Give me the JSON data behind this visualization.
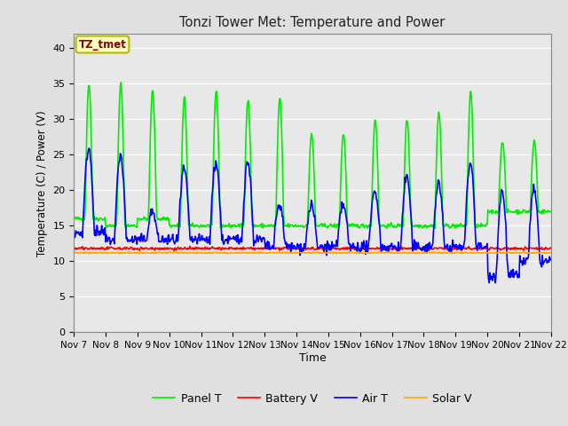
{
  "title": "Tonzi Tower Met: Temperature and Power",
  "xlabel": "Time",
  "ylabel": "Temperature (C) / Power (V)",
  "annotation_text": "TZ_tmet",
  "annotation_color": "#8B0000",
  "annotation_bg": "#FFFFC0",
  "annotation_border": "#B8B800",
  "ylim": [
    0,
    42
  ],
  "yticks": [
    0,
    5,
    10,
    15,
    20,
    25,
    30,
    35,
    40
  ],
  "xtick_labels": [
    "Nov 7",
    "Nov 8",
    "Nov 9",
    "Nov 10",
    "Nov 11",
    "Nov 12",
    "Nov 13",
    "Nov 14",
    "Nov 15",
    "Nov 16",
    "Nov 17",
    "Nov 18",
    "Nov 19",
    "Nov 20",
    "Nov 21",
    "Nov 22"
  ],
  "fig_bg_color": "#E0E0E0",
  "plot_bg_color": "#E8E8E8",
  "grid_color": "#FFFFFF",
  "panel_t_color": "#00EE00",
  "battery_v_color": "#FF0000",
  "air_t_color": "#0000FF",
  "solar_v_color": "#FFA500",
  "line_width": 1.2,
  "legend_labels": [
    "Panel T",
    "Battery V",
    "Air T",
    "Solar V"
  ],
  "panel_peaks": [
    35,
    35,
    34,
    33,
    34,
    33,
    33,
    28,
    28,
    30,
    30,
    31,
    34,
    27,
    27
  ],
  "panel_troughs": [
    16,
    15,
    16,
    15,
    15,
    15,
    15,
    15,
    15,
    15,
    15,
    15,
    15,
    17,
    17
  ],
  "air_peaks": [
    26,
    25,
    17,
    23,
    24,
    24,
    18,
    18,
    18,
    20,
    22,
    21,
    24,
    20,
    20
  ],
  "air_troughs": [
    14,
    13,
    13,
    13,
    13,
    13,
    12,
    12,
    12,
    12,
    12,
    12,
    12,
    8,
    10
  ],
  "battery_base": 11.8,
  "solar_base": 11.2
}
